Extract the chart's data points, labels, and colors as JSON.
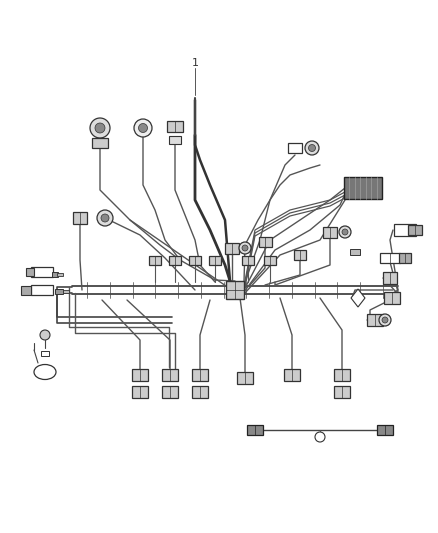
{
  "bg_color": "#ffffff",
  "lc": "#555555",
  "dc": "#333333",
  "label_1": "1",
  "lw": 1.0
}
